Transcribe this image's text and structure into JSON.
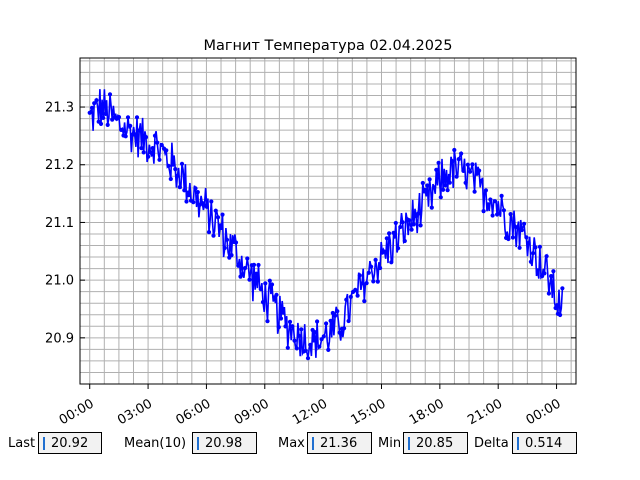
{
  "chart_data": {
    "type": "line",
    "title": "Магнит Температура 02.04.2025",
    "xlabel": "",
    "ylabel": "",
    "x_ticks": [
      "00:00",
      "03:00",
      "06:00",
      "09:00",
      "12:00",
      "15:00",
      "18:00",
      "21:00",
      "00:00"
    ],
    "y_ticks": [
      "20.9",
      "21.0",
      "21.1",
      "21.2",
      "21.3"
    ],
    "xlim_hours": [
      -0.5,
      25
    ],
    "ylim": [
      20.82,
      21.385
    ],
    "grid": true,
    "line_color": "#0000ff",
    "series": [
      {
        "x_hours": [
          0,
          0.5,
          1,
          1.5,
          2,
          2.5,
          3,
          3.5,
          4,
          4.5,
          5,
          5.5,
          6,
          6.5,
          7,
          7.5,
          8,
          8.5,
          9,
          9.5,
          10,
          10.5,
          11,
          11.5,
          12,
          12.5,
          13,
          13.5,
          14,
          14.5,
          15,
          15.5,
          16,
          16.5,
          17,
          17.5,
          18,
          18.5,
          19,
          19.5,
          20,
          20.5,
          21,
          21.5,
          22,
          22.5,
          23,
          23.5,
          24,
          24.3
        ],
        "y": [
          21.28,
          21.3,
          21.29,
          21.27,
          21.26,
          21.25,
          21.24,
          21.23,
          21.21,
          21.19,
          21.17,
          21.14,
          21.12,
          21.1,
          21.07,
          21.05,
          21.02,
          21.0,
          20.97,
          20.95,
          20.93,
          20.91,
          20.9,
          20.89,
          20.9,
          20.91,
          20.93,
          20.96,
          20.99,
          21.02,
          21.04,
          21.06,
          21.08,
          21.1,
          21.12,
          21.14,
          21.17,
          21.19,
          21.19,
          21.18,
          21.16,
          21.15,
          21.13,
          21.11,
          21.09,
          21.07,
          21.04,
          21.01,
          20.97,
          20.95
        ],
        "noise_amplitude": 0.045
      }
    ]
  },
  "stats": {
    "last": {
      "label": "Last",
      "value": "20.92"
    },
    "mean": {
      "label": "Mean(10)",
      "value": "20.98"
    },
    "max": {
      "label": "Max",
      "value": "21.36"
    },
    "min": {
      "label": "Min",
      "value": "20.85"
    },
    "delta": {
      "label": "Delta",
      "value": "0.514"
    }
  }
}
